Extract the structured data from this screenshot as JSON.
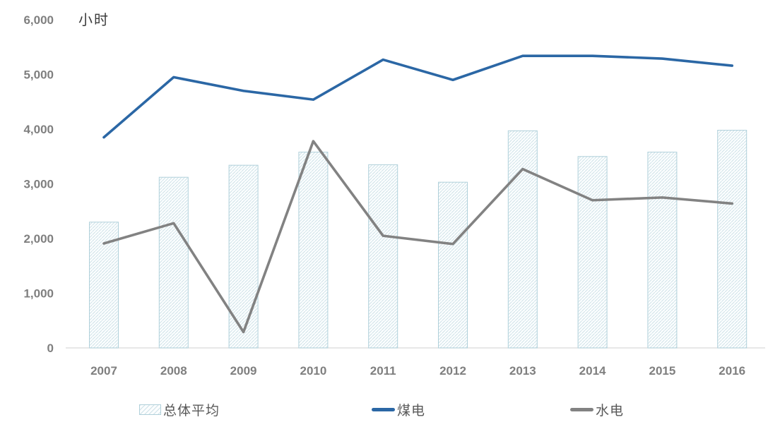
{
  "chart_data": {
    "type": "bar",
    "subtype": "combo-bar-line",
    "title": "",
    "unit_label": "小时",
    "xlabel": "",
    "ylabel": "小时",
    "categories": [
      "2007",
      "2008",
      "2009",
      "2010",
      "2011",
      "2012",
      "2013",
      "2014",
      "2015",
      "2016"
    ],
    "series": [
      {
        "name": "总体平均",
        "type": "bar",
        "values": [
          2300,
          3120,
          3340,
          3580,
          3350,
          3030,
          3970,
          3500,
          3580,
          3980
        ],
        "fill": "hatch",
        "stroke": "#b0d0da",
        "hatch_color": "#cfe2e8",
        "hatch_bg": "#fcfeff"
      },
      {
        "name": "煤电",
        "type": "line",
        "values": [
          3850,
          4950,
          4700,
          4540,
          5270,
          4900,
          5340,
          5340,
          5290,
          5160
        ],
        "color": "#2b67a5"
      },
      {
        "name": "水电",
        "type": "line",
        "values": [
          1910,
          2280,
          290,
          3780,
          2050,
          1900,
          3270,
          2700,
          2750,
          2640
        ],
        "color": "#828282"
      }
    ],
    "ylim": [
      0,
      6000
    ],
    "ytick_step": 1000,
    "ytick_labels": [
      "0",
      "1,000",
      "2,000",
      "3,000",
      "4,000",
      "5,000",
      "6,000"
    ],
    "grid": false,
    "legend_position": "bottom",
    "axis_color": "#d9d9d9",
    "tick_label_color": "#7f7f7f",
    "legend_text_color": "#595959"
  }
}
